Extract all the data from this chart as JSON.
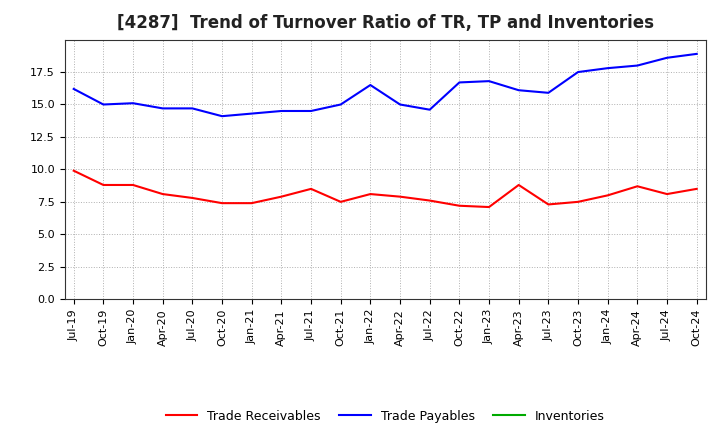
{
  "title": "[4287]  Trend of Turnover Ratio of TR, TP and Inventories",
  "x_labels": [
    "Jul-19",
    "Oct-19",
    "Jan-20",
    "Apr-20",
    "Jul-20",
    "Oct-20",
    "Jan-21",
    "Apr-21",
    "Jul-21",
    "Oct-21",
    "Jan-22",
    "Apr-22",
    "Jul-22",
    "Oct-22",
    "Jan-23",
    "Apr-23",
    "Jul-23",
    "Oct-23",
    "Jan-24",
    "Apr-24",
    "Jul-24",
    "Oct-24"
  ],
  "trade_receivables": [
    9.9,
    8.8,
    8.8,
    8.1,
    7.8,
    7.4,
    7.4,
    7.9,
    8.5,
    7.5,
    8.1,
    7.9,
    7.6,
    7.2,
    7.1,
    8.8,
    7.3,
    7.5,
    8.0,
    8.7,
    8.1,
    8.5
  ],
  "trade_payables": [
    16.2,
    15.0,
    15.1,
    14.7,
    14.7,
    14.1,
    14.3,
    14.5,
    14.5,
    15.0,
    16.5,
    15.0,
    14.6,
    16.7,
    16.8,
    16.1,
    15.9,
    17.5,
    17.8,
    18.0,
    18.6,
    18.9
  ],
  "inventories": [
    null,
    null,
    null,
    null,
    null,
    null,
    null,
    null,
    null,
    null,
    null,
    null,
    null,
    null,
    null,
    null,
    null,
    null,
    null,
    null,
    null,
    null
  ],
  "ylim": [
    0.0,
    20.0
  ],
  "yticks": [
    0.0,
    2.5,
    5.0,
    7.5,
    10.0,
    12.5,
    15.0,
    17.5
  ],
  "tr_color": "#ff0000",
  "tp_color": "#0000ff",
  "inv_color": "#00aa00",
  "background_color": "#ffffff",
  "grid_color": "#b0b0b0",
  "title_fontsize": 12,
  "tick_fontsize": 8,
  "legend_fontsize": 9,
  "legend_labels": [
    "Trade Receivables",
    "Trade Payables",
    "Inventories"
  ]
}
